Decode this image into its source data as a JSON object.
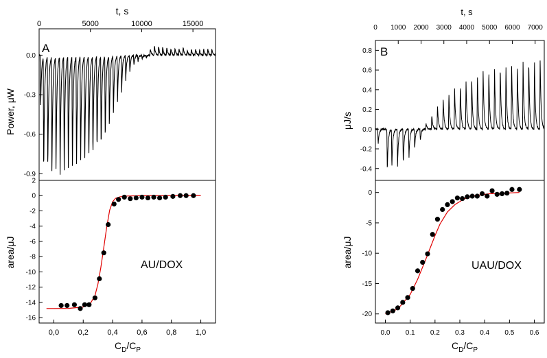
{
  "chart_data": [
    {
      "type": "line",
      "panel_label": "A",
      "xlabel": "t, s",
      "ylabel": "Power, μW",
      "xlim": [
        0,
        17200
      ],
      "ylim": [
        -0.95,
        0.2
      ],
      "xticks": [
        0,
        5000,
        10000,
        15000
      ],
      "yticks": [
        0.0,
        -0.3,
        -0.6,
        -0.9
      ],
      "ytick_labels": [
        "0.0",
        "-0.3",
        "-0.6",
        "-0.9"
      ],
      "baseline": 0.0,
      "series": [
        {
          "injection_time_s": [
            100,
            400,
            800,
            1200,
            1600,
            2000,
            2400,
            2800,
            3200,
            3600,
            4000,
            4400,
            4800,
            5200,
            5600,
            6000,
            6400,
            6800,
            7200,
            7600,
            8000,
            8400,
            8800,
            9200,
            9600,
            10000,
            10400,
            10800,
            11200,
            11600,
            12000,
            12400,
            12800,
            13200,
            13600,
            14000,
            14400,
            14800,
            15200,
            15600,
            16000,
            16400,
            16800
          ],
          "peak_power_uW": [
            -0.41,
            -0.9,
            -0.88,
            -0.92,
            -0.88,
            -0.9,
            -0.88,
            -0.87,
            -0.86,
            -0.86,
            -0.85,
            -0.84,
            -0.82,
            -0.8,
            -0.75,
            -0.72,
            -0.65,
            -0.55,
            -0.45,
            -0.35,
            -0.28,
            -0.19,
            -0.13,
            -0.08,
            -0.05,
            -0.03,
            -0.02,
            0.05,
            0.07,
            0.07,
            0.06,
            0.06,
            0.05,
            0.05,
            0.05,
            0.06,
            0.04,
            0.05,
            0.05,
            0.04,
            0.05,
            0.05,
            0.05
          ]
        }
      ]
    },
    {
      "type": "scatter",
      "xlabel": "CD/CP",
      "xlabel_main": "C",
      "xlabel_sub1": "D",
      "xlabel_mid": "/C",
      "xlabel_sub2": "P",
      "ylabel": "area/μJ",
      "annotation": "AU/DOX",
      "xlim": [
        -0.1,
        1.1
      ],
      "ylim": [
        -16.7,
        2
      ],
      "xticks": [
        0.0,
        0.2,
        0.4,
        0.6,
        0.8,
        1.0
      ],
      "xtick_labels": [
        "0,0",
        "0,2",
        "0,4",
        "0,6",
        "0,8",
        "1,0"
      ],
      "yticks": [
        2,
        0,
        -2,
        -4,
        -6,
        -8,
        -10,
        -12,
        -14,
        -16
      ],
      "series": [
        {
          "x": [
            0.05,
            0.09,
            0.14,
            0.18,
            0.21,
            0.24,
            0.28,
            0.31,
            0.34,
            0.37,
            0.41,
            0.44,
            0.48,
            0.52,
            0.56,
            0.6,
            0.64,
            0.68,
            0.72,
            0.76,
            0.81,
            0.86,
            0.9,
            0.95
          ],
          "y": [
            -14.4,
            -14.4,
            -14.3,
            -14.8,
            -14.3,
            -14.3,
            -13.4,
            -10.9,
            -7.5,
            -3.8,
            -1.1,
            -0.5,
            -0.2,
            -0.4,
            -0.3,
            -0.2,
            -0.3,
            -0.2,
            -0.3,
            -0.2,
            -0.1,
            0.0,
            0.0,
            0.0
          ]
        }
      ],
      "fit": {
        "x": [
          -0.05,
          0.0,
          0.1,
          0.2,
          0.25,
          0.28,
          0.3,
          0.32,
          0.34,
          0.36,
          0.38,
          0.4,
          0.42,
          0.45,
          0.5,
          0.6,
          0.8,
          1.0
        ],
        "y": [
          -14.8,
          -14.8,
          -14.78,
          -14.6,
          -14.1,
          -13.1,
          -11.6,
          -9.4,
          -6.8,
          -4.1,
          -1.9,
          -0.8,
          -0.35,
          -0.15,
          -0.05,
          0.0,
          0.0,
          0.0
        ]
      }
    },
    {
      "type": "line",
      "panel_label": "B",
      "xlabel": "t, s",
      "ylabel": "μJ/s",
      "xlim": [
        0,
        7400
      ],
      "ylim": [
        -0.52,
        0.9
      ],
      "xticks": [
        0,
        1000,
        2000,
        3000,
        4000,
        5000,
        6000,
        7000
      ],
      "xtick_labels": [
        "0",
        "1000",
        "2000",
        "3000",
        "4000",
        "5000",
        "6000",
        "7000"
      ],
      "yticks": [
        0.8,
        0.6,
        0.4,
        0.2,
        0.0,
        -0.2,
        -0.4
      ],
      "ytick_labels": [
        "0.8",
        "0.6",
        "0.4",
        "0.2",
        "0.0",
        "-0.2",
        "-0.4"
      ],
      "baseline": 0.0,
      "series": [
        {
          "injection_time_s": [
            100,
            500,
            700,
            950,
            1200,
            1450,
            1700,
            1950,
            2200,
            2450,
            2700,
            2950,
            3200,
            3450,
            3700,
            3950,
            4200,
            4450,
            4700,
            4950,
            5200,
            5450,
            5700,
            5950,
            6200,
            6450,
            6700,
            6950,
            7200
          ],
          "peak_uJ_per_s": [
            -0.16,
            -0.42,
            -0.4,
            -0.38,
            -0.36,
            -0.3,
            -0.2,
            -0.12,
            0.06,
            0.15,
            0.24,
            0.32,
            0.38,
            0.42,
            0.46,
            0.5,
            0.53,
            0.56,
            0.6,
            0.62,
            0.63,
            0.65,
            0.66,
            0.67,
            0.68,
            0.7,
            0.71,
            0.72,
            0.73
          ]
        }
      ]
    },
    {
      "type": "scatter",
      "xlabel": "CD/CP",
      "xlabel_main": "C",
      "xlabel_sub1": "D",
      "xlabel_mid": "/C",
      "xlabel_sub2": "P",
      "ylabel": "area/μJ",
      "annotation": "UAU/DOX",
      "xlim": [
        -0.04,
        0.64
      ],
      "ylim": [
        -21.5,
        2
      ],
      "xticks": [
        0.0,
        0.1,
        0.2,
        0.3,
        0.4,
        0.5,
        0.6
      ],
      "xtick_labels": [
        "0.0",
        "0.1",
        "0.2",
        "0.3",
        "0.4",
        "0.5",
        "0.6"
      ],
      "yticks": [
        0,
        -5,
        -10,
        -15,
        -20
      ],
      "series": [
        {
          "x": [
            0.01,
            0.03,
            0.05,
            0.07,
            0.09,
            0.11,
            0.13,
            0.15,
            0.17,
            0.19,
            0.21,
            0.23,
            0.25,
            0.27,
            0.29,
            0.31,
            0.33,
            0.35,
            0.37,
            0.39,
            0.41,
            0.43,
            0.45,
            0.47,
            0.49,
            0.51,
            0.54
          ],
          "y": [
            -19.8,
            -19.5,
            -19.0,
            -18.1,
            -17.3,
            -15.8,
            -12.9,
            -11.5,
            -10.1,
            -6.9,
            -4.4,
            -2.8,
            -2.0,
            -1.5,
            -0.9,
            -1.0,
            -0.7,
            -0.6,
            -0.6,
            -0.2,
            -0.6,
            0.3,
            -0.3,
            -0.2,
            -0.1,
            0.5,
            0.5
          ]
        }
      ],
      "fit": {
        "x": [
          0.0,
          0.05,
          0.1,
          0.13,
          0.16,
          0.18,
          0.2,
          0.22,
          0.25,
          0.28,
          0.32,
          0.36,
          0.42,
          0.48,
          0.54
        ],
        "y": [
          -20.0,
          -19.2,
          -16.8,
          -14.3,
          -11.3,
          -9.2,
          -7.1,
          -5.2,
          -3.2,
          -2.0,
          -1.0,
          -0.5,
          -0.2,
          -0.1,
          0.0
        ]
      }
    }
  ]
}
